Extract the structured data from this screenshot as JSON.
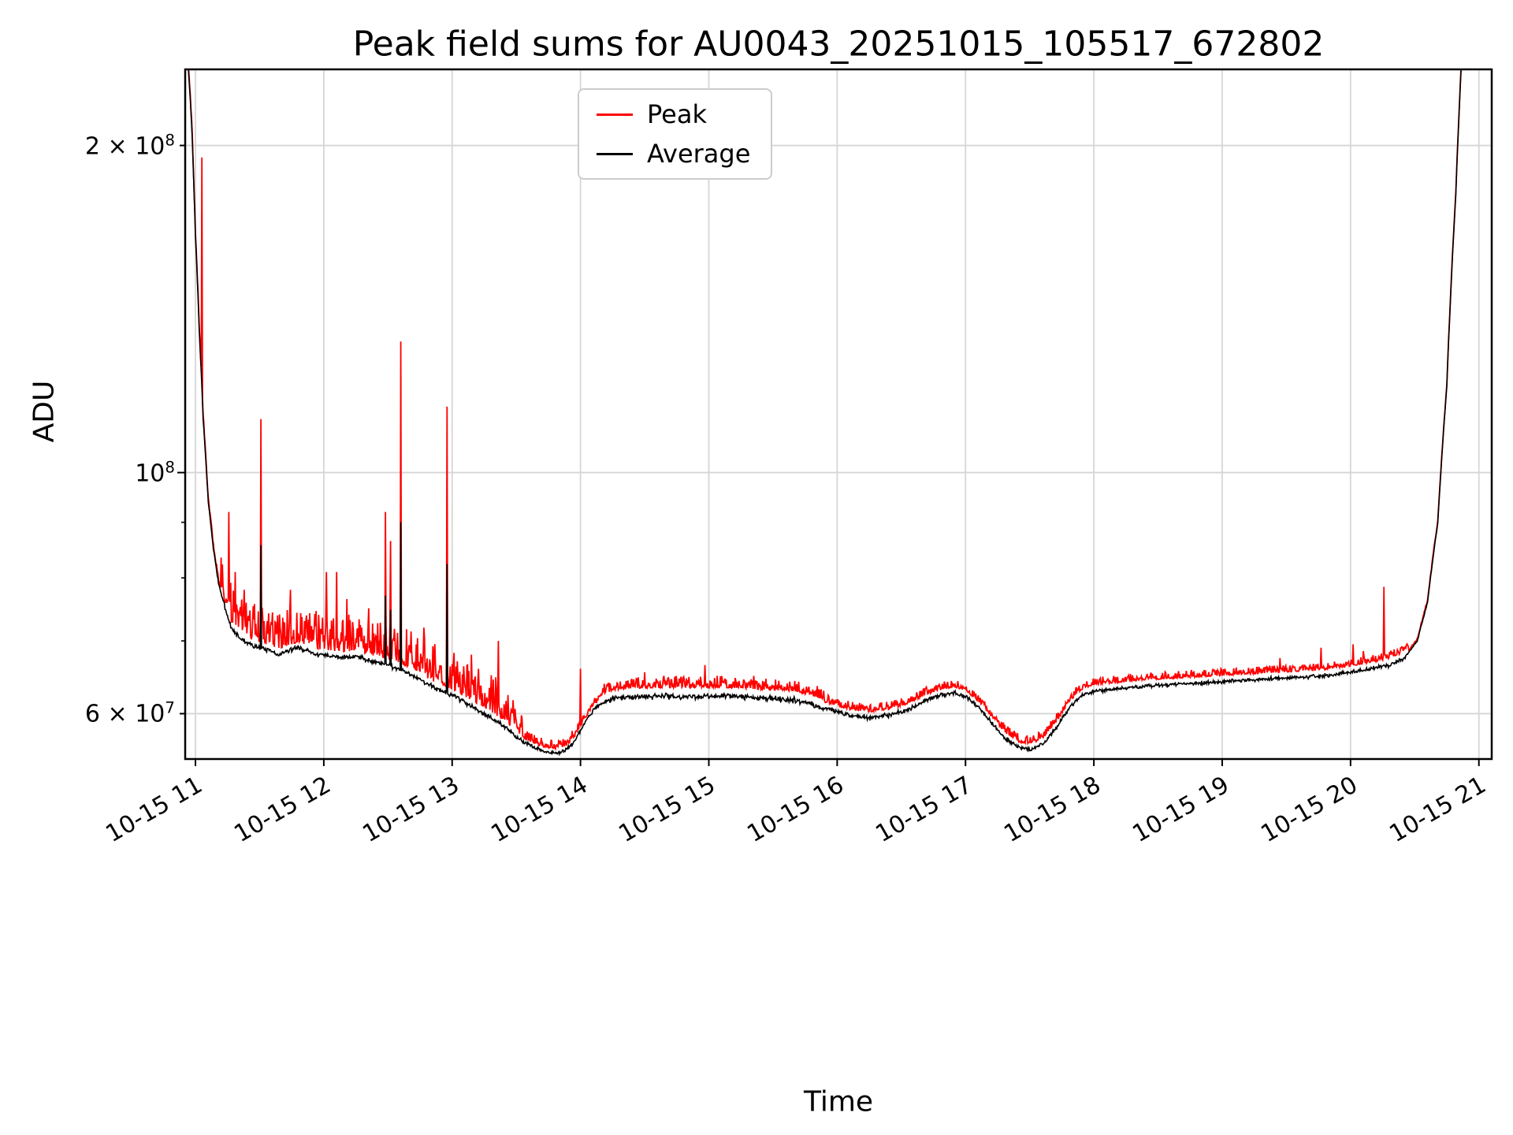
{
  "chart_data": {
    "type": "line",
    "title": "Peak field sums for AU0043_20251015_105517_672802",
    "xlabel": "Time",
    "ylabel": "ADU",
    "y_scale": "log",
    "grid": true,
    "grid_color": "#d6d6d6",
    "x_range_hours": [
      10.92,
      21.1
    ],
    "y_range": [
      54500000.0,
      235000000.0
    ],
    "x_ticks": [
      {
        "hour": 11,
        "label": "10-15 11"
      },
      {
        "hour": 12,
        "label": "10-15 12"
      },
      {
        "hour": 13,
        "label": "10-15 13"
      },
      {
        "hour": 14,
        "label": "10-15 14"
      },
      {
        "hour": 15,
        "label": "10-15 15"
      },
      {
        "hour": 16,
        "label": "10-15 16"
      },
      {
        "hour": 17,
        "label": "10-15 17"
      },
      {
        "hour": 18,
        "label": "10-15 18"
      },
      {
        "hour": 19,
        "label": "10-15 19"
      },
      {
        "hour": 20,
        "label": "10-15 20"
      },
      {
        "hour": 21,
        "label": "10-15 21"
      }
    ],
    "y_ticks_labeled": [
      {
        "value": 200000000.0,
        "prefix": "2 × 10",
        "exp": "8",
        "major": false
      },
      {
        "value": 100000000.0,
        "prefix": "10",
        "exp": "8",
        "major": true
      },
      {
        "value": 60000000.0,
        "prefix": "6 × 10",
        "exp": "7",
        "major": false
      }
    ],
    "y_ticks_minor": [
      70000000.0,
      80000000.0,
      90000000.0
    ],
    "legend": [
      {
        "label": "Peak",
        "color": "#ff0000"
      },
      {
        "label": "Average",
        "color": "#000000"
      }
    ],
    "series": {
      "average_control_points": [
        [
          10.92,
          260000000.0
        ],
        [
          10.97,
          210000000.0
        ],
        [
          11.0,
          165000000.0
        ],
        [
          11.03,
          135000000.0
        ],
        [
          11.06,
          112000000.0
        ],
        [
          11.1,
          94000000.0
        ],
        [
          11.14,
          85000000.0
        ],
        [
          11.18,
          79000000.0
        ],
        [
          11.23,
          75000000.0
        ],
        [
          11.28,
          72000000.0
        ],
        [
          11.34,
          70500000.0
        ],
        [
          11.42,
          69500000.0
        ],
        [
          11.5,
          69000000.0
        ],
        [
          11.58,
          68500000.0
        ],
        [
          11.65,
          68000000.0
        ],
        [
          11.72,
          68500000.0
        ],
        [
          11.8,
          69000000.0
        ],
        [
          11.88,
          68500000.0
        ],
        [
          11.95,
          68000000.0
        ],
        [
          12.05,
          67800000.0
        ],
        [
          12.15,
          67500000.0
        ],
        [
          12.25,
          67800000.0
        ],
        [
          12.35,
          67200000.0
        ],
        [
          12.45,
          66800000.0
        ],
        [
          12.55,
          66200000.0
        ],
        [
          12.65,
          65500000.0
        ],
        [
          12.75,
          64500000.0
        ],
        [
          12.85,
          63500000.0
        ],
        [
          12.95,
          62800000.0
        ],
        [
          13.05,
          62000000.0
        ],
        [
          13.15,
          61000000.0
        ],
        [
          13.25,
          60000000.0
        ],
        [
          13.35,
          59000000.0
        ],
        [
          13.45,
          57800000.0
        ],
        [
          13.55,
          56500000.0
        ],
        [
          13.65,
          55800000.0
        ],
        [
          13.72,
          55400000.0
        ],
        [
          13.8,
          55200000.0
        ],
        [
          13.88,
          55500000.0
        ],
        [
          13.95,
          56500000.0
        ],
        [
          14.02,
          58500000.0
        ],
        [
          14.1,
          60500000.0
        ],
        [
          14.18,
          61500000.0
        ],
        [
          14.28,
          62000000.0
        ],
        [
          14.45,
          62200000.0
        ],
        [
          14.65,
          62300000.0
        ],
        [
          14.85,
          62200000.0
        ],
        [
          15.05,
          62300000.0
        ],
        [
          15.25,
          62200000.0
        ],
        [
          15.45,
          62000000.0
        ],
        [
          15.65,
          61800000.0
        ],
        [
          15.8,
          61200000.0
        ],
        [
          15.95,
          60500000.0
        ],
        [
          16.1,
          59800000.0
        ],
        [
          16.25,
          59500000.0
        ],
        [
          16.4,
          59800000.0
        ],
        [
          16.55,
          60500000.0
        ],
        [
          16.7,
          61800000.0
        ],
        [
          16.82,
          62500000.0
        ],
        [
          16.92,
          62700000.0
        ],
        [
          17.02,
          62000000.0
        ],
        [
          17.12,
          60500000.0
        ],
        [
          17.22,
          58500000.0
        ],
        [
          17.32,
          56800000.0
        ],
        [
          17.42,
          55800000.0
        ],
        [
          17.52,
          55600000.0
        ],
        [
          17.62,
          56500000.0
        ],
        [
          17.72,
          58500000.0
        ],
        [
          17.82,
          61000000.0
        ],
        [
          17.92,
          62500000.0
        ],
        [
          18.02,
          63000000.0
        ],
        [
          18.2,
          63300000.0
        ],
        [
          18.4,
          63600000.0
        ],
        [
          18.6,
          63800000.0
        ],
        [
          18.8,
          64000000.0
        ],
        [
          19.0,
          64200000.0
        ],
        [
          19.2,
          64400000.0
        ],
        [
          19.4,
          64600000.0
        ],
        [
          19.6,
          64800000.0
        ],
        [
          19.8,
          65000000.0
        ],
        [
          20.0,
          65500000.0
        ],
        [
          20.15,
          66000000.0
        ],
        [
          20.3,
          66500000.0
        ],
        [
          20.42,
          67500000.0
        ],
        [
          20.52,
          70000000.0
        ],
        [
          20.6,
          76000000.0
        ],
        [
          20.68,
          90000000.0
        ],
        [
          20.75,
          120000000.0
        ],
        [
          20.82,
          180000000.0
        ],
        [
          20.88,
          260000000.0
        ],
        [
          21.1,
          260000000.0
        ]
      ],
      "peak_spikes": [
        [
          11.05,
          195000000.0
        ],
        [
          11.26,
          92000000.0
        ],
        [
          11.31,
          81000000.0
        ],
        [
          11.38,
          78000000.0
        ],
        [
          11.51,
          112000000.0
        ],
        [
          11.66,
          72000000.0
        ],
        [
          11.74,
          78000000.0
        ],
        [
          11.85,
          73000000.0
        ],
        [
          12.02,
          81000000.0
        ],
        [
          12.1,
          81000000.0
        ],
        [
          12.18,
          76500000.0
        ],
        [
          12.35,
          75000000.0
        ],
        [
          12.48,
          92000000.0
        ],
        [
          12.52,
          86500000.0
        ],
        [
          12.6,
          132000000.0
        ],
        [
          12.78,
          72000000.0
        ],
        [
          12.96,
          115000000.0
        ],
        [
          13.15,
          68000000.0
        ],
        [
          13.36,
          70000000.0
        ],
        [
          14.0,
          66000000.0
        ],
        [
          14.5,
          65500000.0
        ],
        [
          14.97,
          66500000.0
        ],
        [
          15.35,
          65000000.0
        ],
        [
          19.45,
          67500000.0
        ],
        [
          19.77,
          69000000.0
        ],
        [
          20.02,
          69500000.0
        ],
        [
          20.1,
          68500000.0
        ],
        [
          20.26,
          78500000.0
        ]
      ],
      "noise_regions": [
        {
          "t0": 10.92,
          "t1": 11.2,
          "black_amp": 0.003,
          "red_bias": 0.004,
          "red_amp": 0.01
        },
        {
          "t0": 11.2,
          "t1": 13.55,
          "black_amp": 0.006,
          "red_bias": 0.012,
          "red_amp": 0.085
        },
        {
          "t0": 13.55,
          "t1": 14.15,
          "black_amp": 0.005,
          "red_bias": 0.008,
          "red_amp": 0.02
        },
        {
          "t0": 14.15,
          "t1": 15.9,
          "black_amp": 0.007,
          "red_bias": 0.018,
          "red_amp": 0.026
        },
        {
          "t0": 15.9,
          "t1": 17.9,
          "black_amp": 0.006,
          "red_bias": 0.012,
          "red_amp": 0.018
        },
        {
          "t0": 17.9,
          "t1": 20.45,
          "black_amp": 0.005,
          "red_bias": 0.013,
          "red_amp": 0.016
        },
        {
          "t0": 20.45,
          "t1": 21.1,
          "black_amp": 0.002,
          "red_bias": 0.003,
          "red_amp": 0.004
        }
      ],
      "black_spike_power": 0.45
    }
  }
}
